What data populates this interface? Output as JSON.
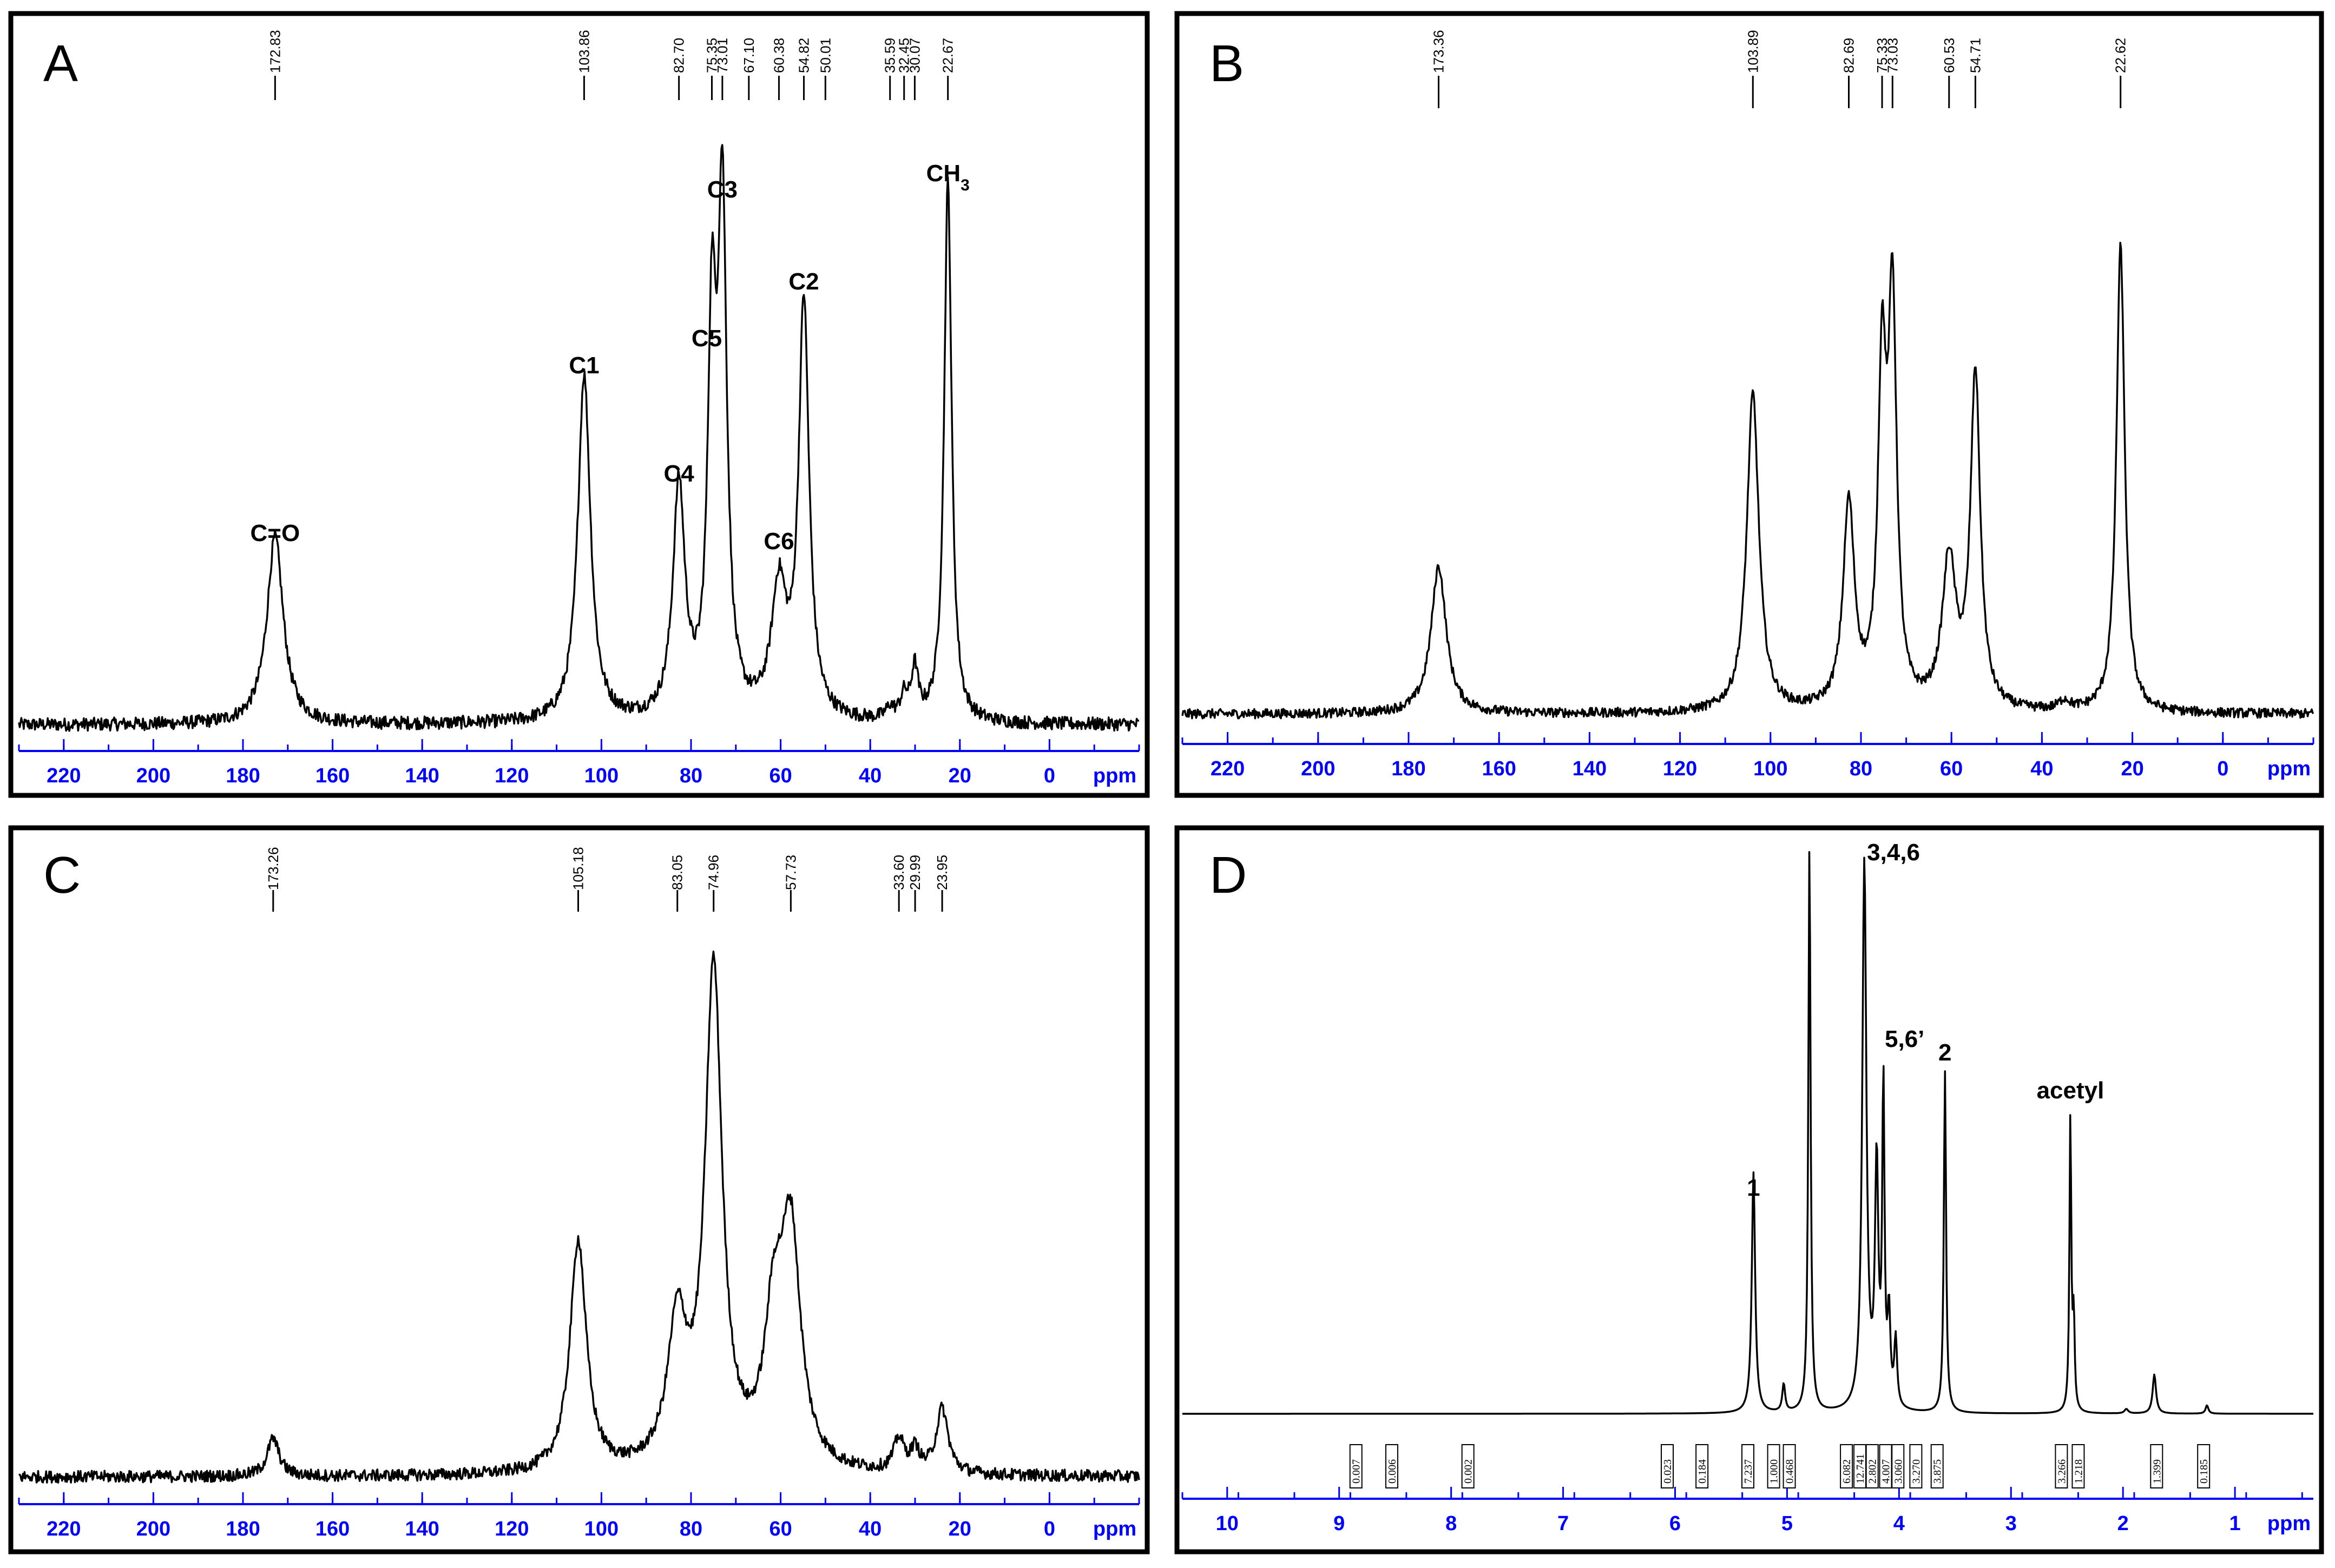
{
  "chart_data": [
    {
      "panel": "A",
      "type": "line",
      "xlabel": "ppm",
      "xlim": [
        230,
        -20
      ],
      "x_reversed": true,
      "ticks": [
        220,
        200,
        180,
        160,
        140,
        120,
        100,
        80,
        60,
        40,
        20,
        0
      ],
      "noise_level": 0.012,
      "series": [
        {
          "peaks": [
            {
              "x": 172.83,
              "height": 0.34,
              "width": 2.2
            },
            {
              "x": 103.86,
              "height": 0.63,
              "width": 1.7
            },
            {
              "x": 82.7,
              "height": 0.42,
              "width": 1.6
            },
            {
              "x": 75.35,
              "height": 0.66,
              "width": 1.1
            },
            {
              "x": 73.01,
              "height": 0.91,
              "width": 1.2
            },
            {
              "x": 60.38,
              "height": 0.23,
              "width": 2.0
            },
            {
              "x": 54.82,
              "height": 0.75,
              "width": 1.4
            },
            {
              "x": 35.59,
              "height": 0.02,
              "width": 1.0
            },
            {
              "x": 32.45,
              "height": 0.04,
              "width": 1.0
            },
            {
              "x": 30.07,
              "height": 0.09,
              "width": 0.9
            },
            {
              "x": 22.67,
              "height": 0.98,
              "width": 1.0
            }
          ]
        }
      ],
      "shift_labels": [
        "172.83",
        "103.86",
        "82.70",
        "75.35",
        "73.01",
        "67.10",
        "60.38",
        "54.82",
        "50.01",
        "35.59",
        "32.45",
        "30.07",
        "22.67"
      ],
      "shift_positions": [
        172.83,
        103.86,
        82.7,
        75.35,
        73.01,
        67.1,
        60.38,
        54.82,
        50.01,
        35.59,
        32.45,
        30.07,
        22.67
      ],
      "annotations": [
        {
          "text": "C=O",
          "x": 172.83
        },
        {
          "text": "C1",
          "x": 103.86
        },
        {
          "text": "C4",
          "x": 82.7
        },
        {
          "text": "C5",
          "x": 76.5
        },
        {
          "text": "C3",
          "x": 73.01
        },
        {
          "text": "C6",
          "x": 60.38
        },
        {
          "text": "C2",
          "x": 54.82
        },
        {
          "text": "CH",
          "sub": "3",
          "x": 22.67
        }
      ]
    },
    {
      "panel": "B",
      "type": "line",
      "xlabel": "ppm",
      "xlim": [
        230,
        -20
      ],
      "x_reversed": true,
      "ticks": [
        220,
        200,
        180,
        160,
        140,
        120,
        100,
        80,
        60,
        40,
        20,
        0
      ],
      "noise_level": 0.01,
      "series": [
        {
          "peaks": [
            {
              "x": 173.36,
              "height": 0.31,
              "width": 2.0
            },
            {
              "x": 103.89,
              "height": 0.67,
              "width": 1.6
            },
            {
              "x": 82.69,
              "height": 0.43,
              "width": 1.5
            },
            {
              "x": 75.33,
              "height": 0.68,
              "width": 1.1
            },
            {
              "x": 73.03,
              "height": 0.82,
              "width": 1.1
            },
            {
              "x": 60.53,
              "height": 0.31,
              "width": 1.8
            },
            {
              "x": 54.71,
              "height": 0.7,
              "width": 1.3
            },
            {
              "x": 35.0,
              "height": 0.02,
              "width": 1.5
            },
            {
              "x": 22.62,
              "height": 0.98,
              "width": 1.1
            }
          ]
        }
      ],
      "shift_labels": [
        "173.36",
        "103.89",
        "82.69",
        "75.33",
        "73.03",
        "60.53",
        "54.71",
        "22.62"
      ],
      "shift_positions": [
        173.36,
        103.89,
        82.69,
        75.33,
        73.03,
        60.53,
        54.71,
        22.62
      ],
      "annotations": []
    },
    {
      "panel": "C",
      "type": "line",
      "xlabel": "ppm",
      "xlim": [
        230,
        -20
      ],
      "x_reversed": true,
      "ticks": [
        220,
        200,
        180,
        160,
        140,
        120,
        100,
        80,
        60,
        40,
        20,
        0
      ],
      "noise_level": 0.011,
      "series": [
        {
          "peaks": [
            {
              "x": 173.26,
              "height": 0.07,
              "width": 1.6
            },
            {
              "x": 105.18,
              "height": 0.43,
              "width": 2.2
            },
            {
              "x": 83.05,
              "height": 0.26,
              "width": 2.6
            },
            {
              "x": 74.96,
              "height": 0.92,
              "width": 2.3
            },
            {
              "x": 61.5,
              "height": 0.25,
              "width": 2.5
            },
            {
              "x": 57.73,
              "height": 0.42,
              "width": 2.6
            },
            {
              "x": 33.6,
              "height": 0.06,
              "width": 1.4
            },
            {
              "x": 29.99,
              "height": 0.04,
              "width": 1.2
            },
            {
              "x": 23.95,
              "height": 0.12,
              "width": 1.6
            }
          ]
        }
      ],
      "shift_labels": [
        "173.26",
        "105.18",
        "83.05",
        "74.96",
        "57.73",
        "33.60",
        "29.99",
        "23.95"
      ],
      "shift_positions": [
        173.26,
        105.18,
        83.05,
        74.96,
        57.73,
        33.6,
        29.99,
        23.95
      ],
      "annotations": []
    },
    {
      "panel": "D",
      "type": "line",
      "xlabel": "ppm",
      "xlim": [
        10.4,
        0.3
      ],
      "x_reversed": true,
      "ticks": [
        10,
        9,
        8,
        7,
        6,
        5,
        4,
        3,
        2,
        1
      ],
      "noise_level": 0,
      "series": [
        {
          "peaks": [
            {
              "x": 5.3,
              "height": 0.43,
              "width": 0.018
            },
            {
              "x": 5.03,
              "height": 0.05,
              "width": 0.015
            },
            {
              "x": 4.8,
              "height": 1.02,
              "width": 0.012
            },
            {
              "x": 4.31,
              "height": 0.98,
              "width": 0.022
            },
            {
              "x": 4.2,
              "height": 0.43,
              "width": 0.018
            },
            {
              "x": 4.14,
              "height": 0.57,
              "width": 0.012
            },
            {
              "x": 4.09,
              "height": 0.16,
              "width": 0.015
            },
            {
              "x": 4.03,
              "height": 0.12,
              "width": 0.015
            },
            {
              "x": 3.59,
              "height": 0.61,
              "width": 0.012
            },
            {
              "x": 2.47,
              "height": 0.53,
              "width": 0.01
            },
            {
              "x": 2.44,
              "height": 0.16,
              "width": 0.01
            },
            {
              "x": 1.97,
              "height": 0.008,
              "width": 0.02
            },
            {
              "x": 1.72,
              "height": 0.07,
              "width": 0.018
            },
            {
              "x": 1.25,
              "height": 0.015,
              "width": 0.015
            }
          ]
        }
      ],
      "integrals": [
        {
          "value": "0.007",
          "x": 8.85
        },
        {
          "value": "0.006",
          "x": 8.53
        },
        {
          "value": "0.002",
          "x": 7.85
        },
        {
          "value": "0.023",
          "x": 6.07
        },
        {
          "value": "0.184",
          "x": 5.76
        },
        {
          "value": "7.237",
          "x": 5.35
        },
        {
          "value": "1.000",
          "x": 5.12
        },
        {
          "value": "0.468",
          "x": 4.98
        },
        {
          "value": "6.082",
          "x": 4.47
        },
        {
          "value": "12.741",
          "x": 4.35
        },
        {
          "value": "2.802",
          "x": 4.24
        },
        {
          "value": "4.007",
          "x": 4.12
        },
        {
          "value": "3.060",
          "x": 4.01
        },
        {
          "value": "3.270",
          "x": 3.85
        },
        {
          "value": "3.875",
          "x": 3.66
        },
        {
          "value": "3.266",
          "x": 2.55
        },
        {
          "value": "1.218",
          "x": 2.4
        },
        {
          "value": "1.399",
          "x": 1.7
        },
        {
          "value": "0.185",
          "x": 1.28
        }
      ],
      "annotations": [
        {
          "text": "1",
          "x": 5.3
        },
        {
          "text": "3,4,6",
          "x": 4.05
        },
        {
          "text": "5,6’",
          "x": 3.95
        },
        {
          "text": "2",
          "x": 3.59
        },
        {
          "text": "acetyl",
          "x": 2.47
        }
      ]
    }
  ]
}
